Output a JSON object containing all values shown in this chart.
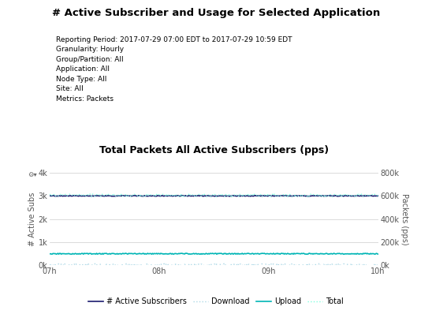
{
  "title": "# Active Subscriber and Usage for Selected Application",
  "chart_title": "Total Packets All Active Subscribers (pps)",
  "metadata": [
    "Reporting Period: 2017-07-29 07:00 EDT to 2017-07-29 10:59 EDT",
    "Granularity: Hourly",
    "Group/Partition: All",
    "Application: All",
    "Node Type: All",
    "Site: All",
    "Metrics: Packets"
  ],
  "ylabel_left": "# Active Subs",
  "ylabel_right": "Packets (pps)",
  "ylim_left": [
    0,
    4000
  ],
  "ylim_right": [
    0,
    800000
  ],
  "yticks_left": [
    0,
    1000,
    2000,
    3000,
    4000
  ],
  "yticks_left_labels": [
    "0k",
    "1k",
    "2k",
    "3k",
    "4k"
  ],
  "yticks_right": [
    0,
    200000,
    400000,
    600000,
    800000
  ],
  "yticks_right_labels": [
    "0k",
    "200k",
    "400k",
    "600k",
    "800k"
  ],
  "xticks": [
    7,
    8,
    9,
    10
  ],
  "xtick_labels": [
    "07h",
    "08h",
    "09h",
    "10h"
  ],
  "xlim": [
    7,
    10
  ],
  "series": [
    {
      "name": "# Active Subscribers",
      "color": "#1a1a6e",
      "linestyle": "solid",
      "linewidth": 1.2,
      "y_value": 3000,
      "noise": 15,
      "axis": "left"
    },
    {
      "name": "Download",
      "color": "#add8e6",
      "linestyle": "dotted",
      "linewidth": 1.0,
      "y_value": 2550,
      "noise": 12000,
      "axis": "right"
    },
    {
      "name": "Upload",
      "color": "#00b5b5",
      "linestyle": "solid",
      "linewidth": 1.2,
      "y_value": 100000,
      "noise": 4000,
      "axis": "right"
    },
    {
      "name": "Total",
      "color": "#7fffdf",
      "linestyle": "dotted",
      "linewidth": 1.0,
      "y_value": 605000,
      "noise": 10000,
      "axis": "right"
    }
  ],
  "background_color": "#ffffff",
  "grid_color": "#cccccc",
  "title_fontsize": 9.5,
  "chart_title_fontsize": 9,
  "meta_fontsize": 6.5,
  "axis_label_fontsize": 7,
  "tick_fontsize": 7,
  "legend_fontsize": 7
}
